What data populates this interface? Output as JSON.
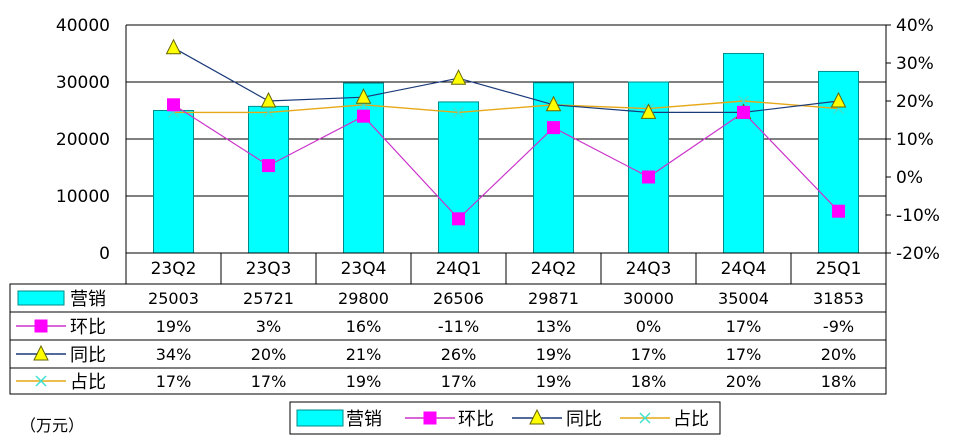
{
  "unit_label": "（万元）",
  "table_row_names": [
    "营销",
    "环比",
    "同比",
    "占比"
  ],
  "legend": [
    "营销",
    "环比",
    "同比",
    "占比"
  ],
  "colors": {
    "bar": "#00ffff",
    "bar_stroke": "#008b8b",
    "qoq": "#ff00ff",
    "qoq_line": "#cc33cc",
    "yoy_line": "#1a3a7a",
    "yoy_marker": "#ffff00",
    "share_line": "#e6a817",
    "share_marker": "#40e0d0",
    "grid": "#000000"
  },
  "icons": {
    "qoq": "square-marker",
    "yoy": "triangle-marker",
    "share": "x-marker"
  },
  "chart_data": {
    "type": "bar",
    "categories": [
      "23Q2",
      "23Q3",
      "23Q4",
      "24Q1",
      "24Q2",
      "24Q3",
      "24Q4",
      "25Q1"
    ],
    "ylim": [
      0,
      40000
    ],
    "yticks": [
      "0",
      "10000",
      "20000",
      "30000",
      "40000"
    ],
    "y2lim": [
      -20,
      40
    ],
    "y2ticks": [
      "-20%",
      "-10%",
      "0%",
      "10%",
      "20%",
      "30%",
      "40%"
    ],
    "grid": true,
    "legend_position": "bottom",
    "series": [
      {
        "name": "营销",
        "type": "bar",
        "axis": "left",
        "values": [
          25003,
          25721,
          29800,
          26506,
          29871,
          30000,
          35004,
          31853
        ],
        "labels": [
          "25003",
          "25721",
          "29800",
          "26506",
          "29871",
          "30000",
          "35004",
          "31853"
        ]
      },
      {
        "name": "环比",
        "type": "line",
        "axis": "right",
        "values": [
          19,
          3,
          16,
          -11,
          13,
          0,
          17,
          -9
        ],
        "labels": [
          "19%",
          "3%",
          "16%",
          "-11%",
          "13%",
          "0%",
          "17%",
          "-9%"
        ]
      },
      {
        "name": "同比",
        "type": "line",
        "axis": "right",
        "values": [
          34,
          20,
          21,
          26,
          19,
          17,
          17,
          20
        ],
        "labels": [
          "34%",
          "20%",
          "21%",
          "26%",
          "19%",
          "17%",
          "17%",
          "20%"
        ]
      },
      {
        "name": "占比",
        "type": "line",
        "axis": "right",
        "values": [
          17,
          17,
          19,
          17,
          19,
          18,
          20,
          18
        ],
        "labels": [
          "17%",
          "17%",
          "19%",
          "17%",
          "19%",
          "18%",
          "20%",
          "18%"
        ]
      }
    ]
  }
}
